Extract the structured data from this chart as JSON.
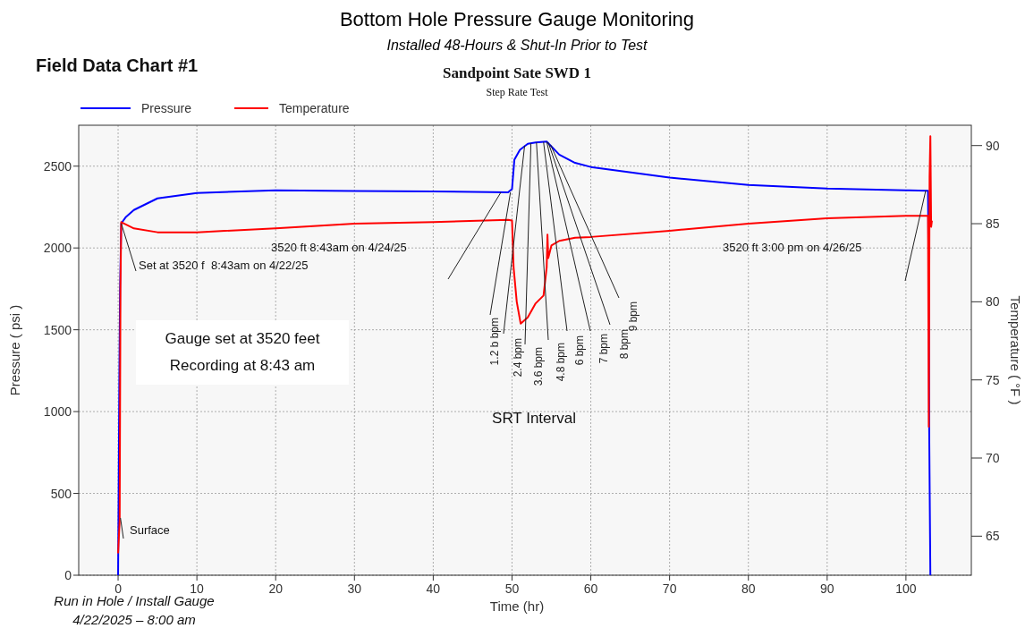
{
  "chart_data": {
    "type": "line",
    "title": "Bottom Hole Pressure Gauge Monitoring",
    "subtitle": "Installed 48-Hours & Shut-In Prior to Test",
    "xlabel": "Time (hr)",
    "ylabel": "Pressure ( psi )",
    "y2label": "Temperature ( °F )",
    "xlim": [
      -5,
      108.3
    ],
    "xticks": [
      0,
      10,
      20,
      30,
      40,
      50,
      60,
      70,
      80,
      90,
      100
    ],
    "ylim": [
      0,
      2750
    ],
    "yticks": [
      0,
      500,
      1000,
      1500,
      2000,
      2500
    ],
    "y2lim": [
      62.5,
      91.3
    ],
    "y2ticks": [
      65,
      70,
      75,
      80,
      85,
      90
    ],
    "grid": true,
    "legend": "top left",
    "marker": "none",
    "line_style": "solid",
    "series": [
      {
        "name": "Pressure",
        "color": "#0000ff",
        "x": [
          0,
          0.15,
          0.25,
          0.4,
          1,
          2,
          5,
          10,
          20,
          30,
          40,
          49.5,
          50,
          50.3,
          51,
          52,
          53,
          54.4,
          55,
          56,
          58,
          60,
          70,
          80,
          90,
          100,
          102.8,
          102.9,
          102.95,
          103.1
        ],
        "values": [
          0,
          1150,
          1750,
          2150,
          2190,
          2232,
          2303,
          2336,
          2352,
          2348,
          2345,
          2340,
          2360,
          2540,
          2600,
          2637,
          2645,
          2650,
          2620,
          2570,
          2520,
          2495,
          2430,
          2385,
          2363,
          2352,
          2350,
          1750,
          900,
          0
        ]
      },
      {
        "name": "Temperature",
        "color": "#ff0000",
        "axis": "y2",
        "x": [
          0,
          0.2,
          0.3,
          0.4,
          2,
          5,
          10,
          20,
          30,
          40,
          49.5,
          50,
          50.2,
          50.6,
          51.1,
          52,
          53,
          54,
          54.4,
          54.5,
          54.6,
          55,
          56,
          58,
          60,
          70,
          80,
          90,
          100,
          102.8,
          102.9,
          103,
          103.1,
          103.2,
          103.3
        ],
        "values": [
          63.9,
          66,
          81,
          85.1,
          84.7,
          84.45,
          84.45,
          84.7,
          85,
          85.1,
          85.25,
          85.2,
          82.2,
          80,
          78.6,
          79,
          79.9,
          80.4,
          82.2,
          84.3,
          82.8,
          83.6,
          83.9,
          84.1,
          84.15,
          84.55,
          85,
          85.35,
          85.5,
          85.5,
          72,
          88,
          90.6,
          84.8,
          85.2
        ]
      }
    ],
    "annotations": [
      "Field Data Chart #1",
      "Sandpoint Sate SWD 1",
      "Step Rate Test",
      {
        "text": "Set at 3520 f  8:43am on 4/22/25",
        "x": 0.4,
        "y": 2150
      },
      "3520 ft 8:43am on 4/24/25",
      "3520 ft 3:00 pm on 4/26/25",
      {
        "text": "Surface",
        "x": 0.3,
        "y": 350
      },
      {
        "text": "1.2 b bpm",
        "x": 49.8,
        "y": 2340
      },
      {
        "text": "2.4 bpm",
        "x": 51.6,
        "y": 2625
      },
      {
        "text": "3.6 bpm",
        "x": 52.4,
        "y": 2640
      },
      {
        "text": "4.8 bpm",
        "x": 53.1,
        "y": 2645
      },
      {
        "text": "6 bpm",
        "x": 54,
        "y": 2648
      },
      {
        "text": "7 bpm",
        "x": 54.4,
        "y": 2650
      },
      {
        "text": "8 bpm",
        "x": 54.6,
        "y": 2645
      },
      {
        "text": "9 bpm",
        "x": 54.9,
        "y": 2630
      },
      "SRT Interval",
      "Gauge set at 3520 feet",
      "Recording at 8:43 am",
      "Run in Hole / Install Gauge",
      "4/22/2025 – 8:00 am"
    ]
  }
}
